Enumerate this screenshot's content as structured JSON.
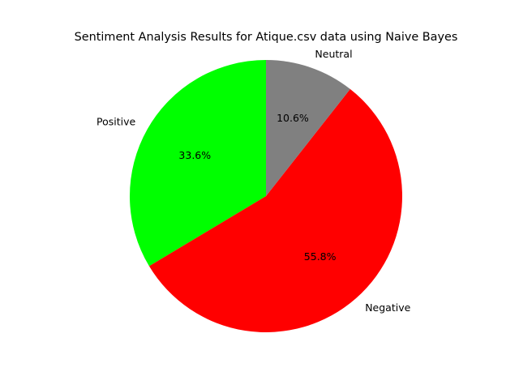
{
  "chart_data": {
    "type": "pie",
    "title": "Sentiment Analysis Results for Atique.csv data using Naive Bayes",
    "categories": [
      "Positive",
      "Negative",
      "Neutral"
    ],
    "values": [
      33.6,
      55.8,
      10.6
    ],
    "value_labels": [
      "33.6%",
      "55.8%",
      "10.6%"
    ],
    "colors": [
      "#00ff00",
      "#ff0000",
      "#808080"
    ],
    "legend": "none"
  }
}
